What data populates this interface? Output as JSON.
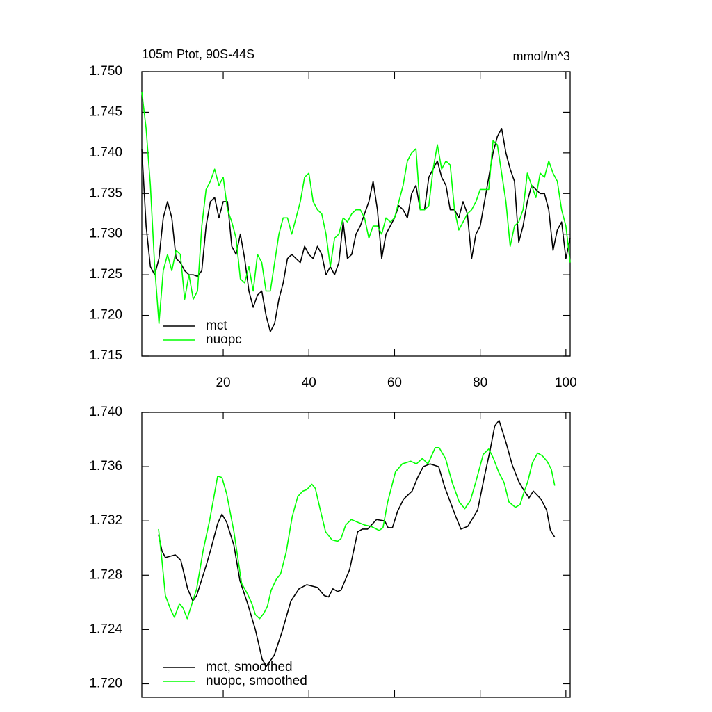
{
  "chart_data": [
    {
      "type": "line",
      "title": "105m Ptot, 90S-44S",
      "units": "mmol/m^3",
      "legend": "lower left",
      "xlim": [
        1,
        101
      ],
      "xticks": [
        20,
        40,
        60,
        80,
        100
      ],
      "ylim": [
        1.715,
        1.75
      ],
      "yticks": [
        {
          "value": 1.715,
          "label": "1.715"
        },
        {
          "value": 1.72,
          "label": "1.720"
        },
        1.725,
        {
          "value": 1.73,
          "label": "1.730"
        },
        1.735,
        {
          "value": 1.74,
          "label": "1.740"
        },
        1.745,
        {
          "value": 1.75,
          "label": "1.750"
        }
      ],
      "x": [
        1,
        2,
        3,
        4,
        5,
        6,
        7,
        8,
        9,
        10,
        11,
        12,
        13,
        14,
        15,
        16,
        17,
        18,
        19,
        20,
        21,
        22,
        23,
        24,
        25,
        26,
        27,
        28,
        29,
        30,
        31,
        32,
        33,
        34,
        35,
        36,
        37,
        38,
        39,
        40,
        41,
        42,
        43,
        44,
        45,
        46,
        47,
        48,
        49,
        50,
        51,
        52,
        53,
        54,
        55,
        56,
        57,
        58,
        59,
        60,
        61,
        62,
        63,
        64,
        65,
        66,
        67,
        68,
        69,
        70,
        71,
        72,
        73,
        74,
        75,
        76,
        77,
        78,
        79,
        80,
        81,
        82,
        83,
        84,
        85,
        86,
        87,
        88,
        89,
        90,
        91,
        92,
        93,
        94,
        95,
        96,
        97,
        98,
        99,
        100,
        101
      ],
      "series": [
        {
          "name": "mct",
          "color": "#000000",
          "values": [
            1.7405,
            1.731,
            1.726,
            1.725,
            1.727,
            1.732,
            1.734,
            1.732,
            1.727,
            1.7265,
            1.7255,
            1.725,
            1.725,
            1.7248,
            1.7255,
            1.731,
            1.734,
            1.7345,
            1.732,
            1.734,
            1.734,
            1.7285,
            1.7275,
            1.73,
            1.727,
            1.723,
            1.721,
            1.7225,
            1.723,
            1.72,
            1.718,
            1.719,
            1.722,
            1.724,
            1.727,
            1.7275,
            1.727,
            1.7265,
            1.7285,
            1.7275,
            1.727,
            1.7285,
            1.7275,
            1.725,
            1.726,
            1.725,
            1.7265,
            1.7315,
            1.727,
            1.7275,
            1.73,
            1.731,
            1.7325,
            1.734,
            1.7365,
            1.733,
            1.727,
            1.73,
            1.731,
            1.732,
            1.7335,
            1.733,
            1.732,
            1.735,
            1.736,
            1.733,
            1.733,
            1.737,
            1.738,
            1.739,
            1.737,
            1.736,
            1.733,
            1.733,
            1.732,
            1.734,
            1.7325,
            1.727,
            1.73,
            1.731,
            1.734,
            1.737,
            1.74,
            1.742,
            1.743,
            1.74,
            1.738,
            1.7365,
            1.729,
            1.731,
            1.734,
            1.736,
            1.7355,
            1.735,
            1.735,
            1.733,
            1.728,
            1.7305,
            1.7315,
            1.727,
            1.7295
          ]
        },
        {
          "name": "nuopc",
          "color": "#00ff00",
          "values": [
            1.7475,
            1.743,
            1.736,
            1.726,
            1.719,
            1.7255,
            1.7275,
            1.7255,
            1.728,
            1.7275,
            1.722,
            1.725,
            1.722,
            1.723,
            1.731,
            1.7355,
            1.7365,
            1.738,
            1.736,
            1.737,
            1.733,
            1.7315,
            1.7295,
            1.7245,
            1.724,
            1.726,
            1.723,
            1.7275,
            1.7265,
            1.723,
            1.723,
            1.7265,
            1.73,
            1.732,
            1.732,
            1.73,
            1.732,
            1.734,
            1.737,
            1.7375,
            1.734,
            1.733,
            1.7325,
            1.73,
            1.726,
            1.7295,
            1.73,
            1.732,
            1.7315,
            1.7325,
            1.733,
            1.733,
            1.732,
            1.7295,
            1.731,
            1.731,
            1.73,
            1.732,
            1.7315,
            1.732,
            1.734,
            1.736,
            1.739,
            1.74,
            1.7405,
            1.733,
            1.733,
            1.7335,
            1.738,
            1.741,
            1.738,
            1.739,
            1.7385,
            1.733,
            1.7305,
            1.7315,
            1.7325,
            1.733,
            1.734,
            1.7355,
            1.7355,
            1.7355,
            1.7415,
            1.741,
            1.7375,
            1.734,
            1.7285,
            1.731,
            1.7315,
            1.733,
            1.7375,
            1.736,
            1.7345,
            1.7375,
            1.737,
            1.739,
            1.7375,
            1.7365,
            1.733,
            1.731,
            1.7265
          ]
        }
      ]
    },
    {
      "type": "line",
      "legend": "lower left",
      "xlim": [
        1,
        101
      ],
      "xticks": [
        20,
        40,
        60,
        80,
        100
      ],
      "ylim": [
        1.719,
        1.74
      ],
      "yticks": [
        {
          "value": 1.72,
          "label": "1.720"
        },
        1.724,
        1.728,
        1.732,
        1.736,
        {
          "value": 1.74,
          "label": "1.740"
        }
      ],
      "series": [
        {
          "name": "mct, smoothed",
          "color": "#000000",
          "x": [
            4.9,
            5.7,
            6.5,
            8.8,
            10.1,
            11.7,
            12.9,
            13.8,
            16,
            17.1,
            18.7,
            19.7,
            20.8,
            22.5,
            23.9,
            25.7,
            27.5,
            29.1,
            30.1,
            31.9,
            33.7,
            35.8,
            37.7,
            39.5,
            42,
            43.6,
            44.6,
            45.6,
            46.7,
            47.5,
            49.5,
            51.4,
            52.5,
            53.7,
            55.8,
            57.7,
            58.5,
            59.5,
            60.7,
            62.1,
            64.1,
            65.4,
            66.7,
            68.3,
            70.3,
            71.7,
            74.2,
            75.5,
            77.1,
            79.4,
            81,
            82.3,
            83.4,
            84.4,
            86,
            87.5,
            89,
            90.1,
            91.4,
            92.4,
            94.2,
            95.5,
            96.4,
            97.4
          ],
          "values": [
            1.731,
            1.7298,
            1.7293,
            1.7295,
            1.7291,
            1.727,
            1.7261,
            1.7265,
            1.7287,
            1.7299,
            1.7318,
            1.7325,
            1.7319,
            1.7302,
            1.7276,
            1.7259,
            1.724,
            1.7218,
            1.7213,
            1.7221,
            1.7238,
            1.7261,
            1.727,
            1.7273,
            1.7271,
            1.7265,
            1.7264,
            1.727,
            1.7268,
            1.7269,
            1.7284,
            1.7312,
            1.7314,
            1.7314,
            1.7321,
            1.732,
            1.7315,
            1.7315,
            1.7327,
            1.7336,
            1.7342,
            1.7352,
            1.736,
            1.7362,
            1.736,
            1.7345,
            1.7324,
            1.7314,
            1.7316,
            1.7328,
            1.7353,
            1.7372,
            1.739,
            1.7394,
            1.7378,
            1.7361,
            1.7349,
            1.7343,
            1.7337,
            1.7342,
            1.7336,
            1.7328,
            1.7313,
            1.7308
          ]
        },
        {
          "name": "nuopc, smoothed",
          "color": "#00ff00",
          "x": [
            4.9,
            5.6,
            6.5,
            7.7,
            8.6,
            9.8,
            10.6,
            11.6,
            12.7,
            13.8,
            15.3,
            16.8,
            17.9,
            18.7,
            19.7,
            20.8,
            22.5,
            24.3,
            25.7,
            26.7,
            27.5,
            28.5,
            29.5,
            30.3,
            31.2,
            32.4,
            33.4,
            34.7,
            36.1,
            37.4,
            38.6,
            39.5,
            40.7,
            41.5,
            42.6,
            43.9,
            45.4,
            46.7,
            47.5,
            48.6,
            49.9,
            51.4,
            53,
            54.5,
            56.4,
            57.3,
            58.4,
            60.2,
            61.8,
            63.8,
            65.1,
            66.5,
            67.8,
            69.5,
            70.4,
            71.9,
            73.5,
            75.1,
            76.4,
            77.7,
            79,
            80.7,
            82,
            83.1,
            84.3,
            85.6,
            86.7,
            88.2,
            89.3,
            90.1,
            91.1,
            92.2,
            93.4,
            94.5,
            95.6,
            96.6,
            97.4
          ],
          "values": [
            1.7314,
            1.7294,
            1.7265,
            1.7255,
            1.7249,
            1.7259,
            1.7256,
            1.7248,
            1.7259,
            1.727,
            1.7298,
            1.732,
            1.7339,
            1.7353,
            1.7352,
            1.734,
            1.7312,
            1.7274,
            1.7266,
            1.7259,
            1.7251,
            1.7248,
            1.7252,
            1.7257,
            1.7269,
            1.7277,
            1.7281,
            1.7297,
            1.7323,
            1.7338,
            1.7342,
            1.7343,
            1.7347,
            1.7344,
            1.7329,
            1.7312,
            1.7306,
            1.7305,
            1.7307,
            1.7317,
            1.7321,
            1.7319,
            1.7317,
            1.7316,
            1.7313,
            1.7315,
            1.7334,
            1.7356,
            1.7362,
            1.7364,
            1.7362,
            1.7366,
            1.7362,
            1.7374,
            1.7374,
            1.7366,
            1.7348,
            1.7334,
            1.7329,
            1.7335,
            1.7349,
            1.7369,
            1.7373,
            1.7366,
            1.7356,
            1.7348,
            1.7334,
            1.733,
            1.7332,
            1.734,
            1.7349,
            1.7363,
            1.737,
            1.7368,
            1.7364,
            1.7358,
            1.7346
          ]
        }
      ]
    }
  ]
}
